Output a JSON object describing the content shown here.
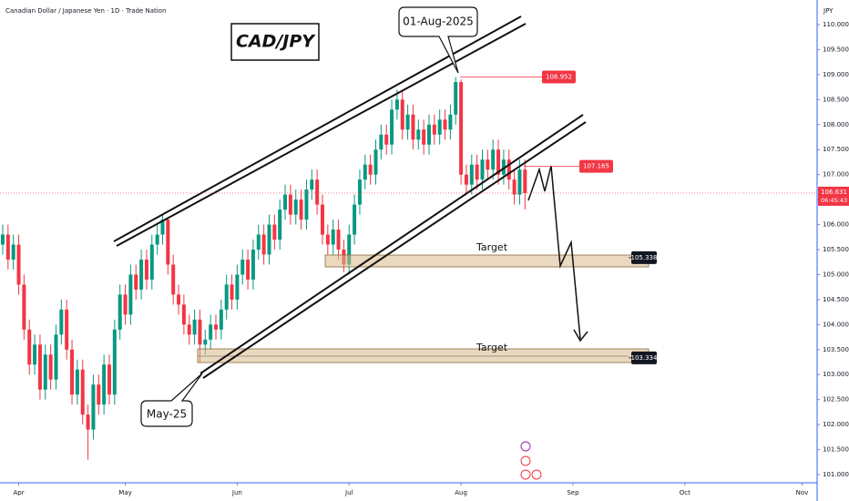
{
  "header": {
    "symbol": "Canadian Dollar / Japanese Yen · 1D · Trade Nation",
    "currency": "JPY"
  },
  "chart_data": {
    "type": "candlestick",
    "title": "CAD/JPY",
    "annotations": {
      "peak": "01-Aug-2025",
      "low": "May-25",
      "target1": "Target",
      "target2": "Target"
    },
    "up_color": "#089981",
    "down_color": "#f23645",
    "open": [
      105.6,
      105.8,
      105.3,
      105.6,
      104.8,
      103.9,
      103.2,
      103.6,
      102.7,
      103.4,
      102.9,
      103.8,
      104.3,
      103.5,
      102.6,
      103.1,
      102.2,
      101.9,
      102.8,
      102.4,
      103.2,
      102.6,
      103.9,
      104.6,
      104.2,
      105.0,
      104.7,
      105.3,
      104.9,
      105.6,
      105.8,
      106.1,
      105.2,
      104.6,
      104.4,
      104.0,
      103.8,
      104.1,
      103.6,
      103.7,
      104.0,
      103.9,
      104.3,
      104.8,
      104.5,
      105.0,
      105.3,
      104.9,
      105.5,
      105.8,
      105.4,
      106.0,
      105.7,
      106.3,
      106.6,
      106.2,
      106.5,
      106.1,
      106.7,
      106.9,
      106.4,
      105.8,
      105.6,
      105.9,
      105.5,
      105.2,
      105.8,
      106.4,
      106.9,
      107.2,
      107.0,
      107.5,
      107.8,
      107.6,
      108.3,
      108.5,
      107.9,
      108.2,
      107.7,
      107.9,
      107.6,
      108.0,
      107.8,
      108.1,
      107.9,
      108.2,
      108.85,
      107.0,
      106.8,
      107.2,
      106.9,
      107.3,
      107.1,
      107.5,
      107.0,
      107.3,
      106.9,
      106.6,
      107.1
    ],
    "high": [
      106.0,
      106.0,
      105.8,
      105.8,
      105.0,
      104.1,
      103.8,
      103.8,
      103.6,
      103.6,
      104.0,
      104.5,
      104.5,
      103.7,
      103.3,
      103.3,
      102.4,
      103.0,
      103.0,
      103.4,
      103.4,
      104.1,
      104.8,
      104.8,
      105.2,
      105.2,
      105.5,
      105.5,
      105.8,
      106.0,
      106.22,
      106.15,
      105.4,
      104.8,
      104.6,
      104.2,
      104.3,
      104.3,
      103.9,
      104.2,
      104.2,
      104.5,
      105.0,
      105.0,
      105.2,
      105.5,
      105.5,
      105.7,
      106.0,
      106.0,
      106.2,
      106.2,
      106.5,
      106.8,
      106.8,
      106.7,
      106.7,
      106.9,
      107.1,
      107.1,
      106.6,
      106.0,
      106.1,
      106.1,
      105.7,
      106.0,
      106.6,
      107.1,
      107.4,
      107.4,
      107.7,
      108.0,
      108.0,
      108.5,
      108.7,
      108.7,
      108.4,
      108.4,
      108.1,
      108.1,
      108.2,
      108.2,
      108.3,
      108.3,
      108.4,
      108.952,
      108.9,
      107.2,
      107.4,
      107.4,
      107.5,
      107.5,
      107.7,
      107.7,
      107.5,
      107.5,
      107.1,
      107.3,
      107.3
    ],
    "low": [
      105.4,
      105.1,
      105.1,
      104.6,
      103.7,
      103.0,
      103.0,
      102.5,
      102.5,
      102.7,
      102.7,
      103.6,
      103.3,
      102.4,
      102.4,
      102.0,
      101.3,
      101.7,
      102.2,
      102.2,
      102.4,
      102.4,
      103.7,
      104.0,
      104.0,
      104.5,
      104.5,
      104.7,
      104.7,
      105.4,
      105.6,
      105.0,
      104.4,
      104.2,
      103.8,
      103.6,
      103.6,
      103.25,
      103.4,
      103.5,
      103.7,
      103.7,
      104.1,
      104.3,
      104.3,
      104.8,
      104.7,
      104.7,
      105.3,
      105.2,
      105.2,
      105.5,
      105.5,
      106.1,
      106.0,
      106.0,
      105.9,
      105.9,
      106.5,
      106.2,
      105.6,
      105.4,
      105.4,
      105.3,
      105.05,
      105.0,
      105.6,
      106.2,
      106.7,
      106.8,
      106.8,
      107.3,
      107.4,
      107.4,
      108.1,
      107.7,
      107.7,
      107.5,
      107.5,
      107.4,
      107.4,
      107.6,
      107.6,
      107.7,
      107.7,
      108.0,
      106.8,
      106.6,
      106.6,
      106.7,
      106.7,
      106.9,
      106.9,
      106.8,
      106.8,
      106.7,
      106.4,
      106.4,
      106.3
    ],
    "close": [
      105.8,
      105.3,
      105.6,
      104.8,
      103.9,
      103.2,
      103.6,
      102.7,
      103.4,
      102.9,
      103.8,
      104.3,
      103.5,
      102.6,
      103.1,
      102.2,
      101.9,
      102.8,
      102.4,
      103.2,
      102.6,
      103.9,
      104.6,
      104.2,
      105.0,
      104.7,
      105.3,
      104.9,
      105.6,
      105.8,
      106.1,
      105.2,
      104.6,
      104.4,
      104.0,
      103.8,
      104.1,
      103.6,
      103.7,
      104.0,
      103.9,
      104.3,
      104.8,
      104.5,
      105.0,
      105.3,
      104.9,
      105.5,
      105.8,
      105.4,
      106.0,
      105.7,
      106.3,
      106.6,
      106.2,
      106.5,
      106.1,
      106.7,
      106.9,
      106.4,
      105.8,
      105.6,
      105.9,
      105.5,
      105.2,
      105.8,
      106.4,
      106.9,
      107.2,
      107.0,
      107.5,
      107.8,
      107.6,
      108.3,
      108.5,
      107.9,
      108.2,
      107.7,
      107.9,
      107.6,
      108.0,
      107.8,
      108.1,
      107.9,
      108.2,
      108.85,
      107.0,
      106.8,
      107.2,
      106.9,
      107.3,
      107.1,
      107.5,
      107.0,
      107.3,
      106.9,
      106.6,
      107.1,
      106.63
    ],
    "xlim": [
      -0.51,
      152.82
    ],
    "xticks": [
      {
        "value": 3,
        "label": "Apr"
      },
      {
        "value": 23,
        "label": "May"
      },
      {
        "value": 44,
        "label": "Jun"
      },
      {
        "value": 65,
        "label": "Jul"
      },
      {
        "value": 86,
        "label": "Aug"
      },
      {
        "value": 107,
        "label": "Sep"
      },
      {
        "value": 128,
        "label": "Oct"
      },
      {
        "value": 150,
        "label": "Nov"
      }
    ],
    "ylim": [
      100.836,
      110.492
    ],
    "yticks": [
      {
        "value": 101,
        "label": "101.000"
      },
      {
        "value": 101.5,
        "label": "101.500"
      },
      {
        "value": 102,
        "label": "102.000"
      },
      {
        "value": 102.5,
        "label": "102.500"
      },
      {
        "value": 103,
        "label": "103.000"
      },
      {
        "value": 103.5,
        "label": "103.500"
      },
      {
        "value": 104,
        "label": "104.000"
      },
      {
        "value": 104.5,
        "label": "104.500"
      },
      {
        "value": 105,
        "label": "105.000"
      },
      {
        "value": 105.5,
        "label": "105.500"
      },
      {
        "value": 106,
        "label": "106.000"
      },
      {
        "value": 106.5,
        "label": "106.500"
      },
      {
        "value": 107,
        "label": "107.000"
      },
      {
        "value": 107.5,
        "label": "107.500"
      },
      {
        "value": 108,
        "label": "108.000"
      },
      {
        "value": 108.5,
        "label": "108.500"
      },
      {
        "value": 109,
        "label": "109.000"
      },
      {
        "value": 109.5,
        "label": "109.500"
      },
      {
        "value": 110,
        "label": "110.000"
      }
    ],
    "levels": {
      "high": 108.952,
      "resistance": 107.165,
      "target1": 105.338,
      "target2": 103.334
    },
    "last": {
      "value": 106.631,
      "countdown": "06:45:43"
    },
    "grid": false
  }
}
